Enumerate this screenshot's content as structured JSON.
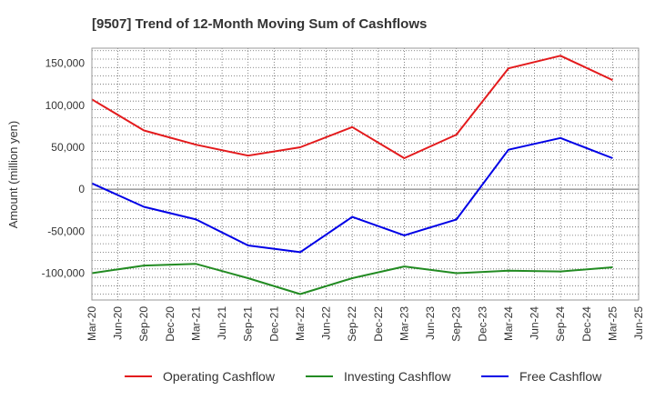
{
  "chart_data": {
    "type": "line",
    "title": "[9507]  Trend of 12-Month Moving Sum of Cashflows",
    "ylabel": "Amount (million yen)",
    "xlabel": "",
    "ylim": [
      -132000,
      168000
    ],
    "yticks": [
      -100000,
      -50000,
      0,
      50000,
      100000,
      150000
    ],
    "ytick_labels": [
      "-100,000",
      "-50,000",
      "0",
      "50,000",
      "100,000",
      "150,000"
    ],
    "x_ticks": [
      "Mar-20",
      "Jun-20",
      "Sep-20",
      "Dec-20",
      "Mar-21",
      "Jun-21",
      "Sep-21",
      "Dec-21",
      "Mar-22",
      "Jun-22",
      "Sep-22",
      "Dec-22",
      "Mar-23",
      "Jun-23",
      "Sep-23",
      "Dec-23",
      "Mar-24",
      "Jun-24",
      "Sep-24",
      "Dec-24",
      "Mar-25",
      "Jun-25"
    ],
    "x": [
      "Mar-20",
      "Sep-20",
      "Mar-21",
      "Sep-21",
      "Mar-22",
      "Sep-22",
      "Mar-23",
      "Sep-23",
      "Mar-24",
      "Sep-24",
      "Mar-25"
    ],
    "grid": true,
    "legend_position": "bottom",
    "series": [
      {
        "name": "Operating Cashflow",
        "color": "#e31a1c",
        "values": [
          107000,
          70000,
          53000,
          40000,
          50000,
          74000,
          37000,
          65000,
          144000,
          159000,
          130000
        ]
      },
      {
        "name": "Investing Cashflow",
        "color": "#228b22",
        "values": [
          -100000,
          -91000,
          -89000,
          -106000,
          -125000,
          -106000,
          -92000,
          -100000,
          -97000,
          -98000,
          -93000
        ]
      },
      {
        "name": "Free Cashflow",
        "color": "#0000e6",
        "values": [
          7000,
          -21000,
          -36000,
          -67000,
          -75000,
          -33000,
          -55000,
          -36000,
          47000,
          61000,
          37000
        ]
      }
    ]
  }
}
